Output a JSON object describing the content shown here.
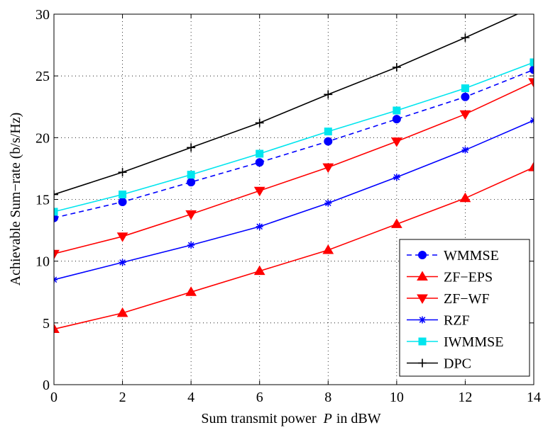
{
  "chart_data": {
    "type": "line",
    "title": "",
    "xlabel": "Sum transmit power",
    "xlabel_var": "P",
    "xlabel_unit": "in dBW",
    "ylabel": "Achievable Sum−rate (b/s/Hz)",
    "xlim": [
      0,
      14
    ],
    "ylim": [
      0,
      30
    ],
    "xticks": [
      "0",
      "2",
      "4",
      "6",
      "8",
      "10",
      "12",
      "14"
    ],
    "yticks": [
      "0",
      "5",
      "10",
      "15",
      "20",
      "25",
      "30"
    ],
    "grid": true,
    "legend_position": "bottom-right",
    "x": [
      0,
      2,
      4,
      6,
      8,
      10,
      12,
      14
    ],
    "series": [
      {
        "name": "WMMSE",
        "color": "#0000ff",
        "marker": "circle",
        "dashed": true,
        "values": [
          13.5,
          14.8,
          16.4,
          18.0,
          19.7,
          21.5,
          23.3,
          25.5
        ]
      },
      {
        "name": "ZF−EPS",
        "color": "#ff0000",
        "marker": "triangle-up",
        "dashed": false,
        "values": [
          4.5,
          5.8,
          7.5,
          9.2,
          10.9,
          13.0,
          15.1,
          17.6
        ]
      },
      {
        "name": "ZF−WF",
        "color": "#ff0000",
        "marker": "triangle-down",
        "dashed": false,
        "values": [
          10.6,
          12.0,
          13.8,
          15.7,
          17.6,
          19.7,
          21.9,
          24.5
        ]
      },
      {
        "name": "RZF",
        "color": "#0000ff",
        "marker": "star",
        "dashed": false,
        "values": [
          8.5,
          9.9,
          11.3,
          12.8,
          14.7,
          16.8,
          19.0,
          21.4
        ]
      },
      {
        "name": "IWMMSE",
        "color": "#00e5ee",
        "marker": "square",
        "dashed": false,
        "values": [
          14.0,
          15.4,
          17.0,
          18.7,
          20.5,
          22.2,
          24.0,
          26.1
        ]
      },
      {
        "name": "DPC",
        "color": "#000000",
        "marker": "plus",
        "dashed": false,
        "values": [
          15.4,
          17.2,
          19.2,
          21.2,
          23.5,
          25.7,
          28.1,
          30.6
        ]
      }
    ]
  }
}
